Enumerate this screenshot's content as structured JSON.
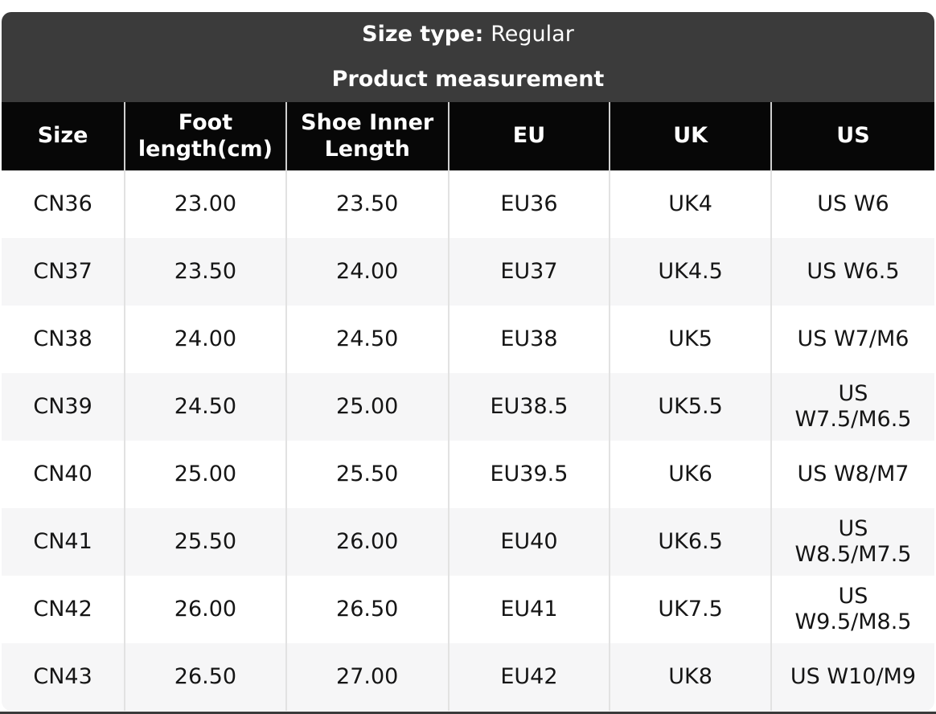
{
  "banner": {
    "size_type_label": "Size type:",
    "size_type_value": "Regular",
    "subtitle": "Product measurement"
  },
  "table": {
    "columns": [
      "Size",
      "Foot length(cm)",
      "Shoe Inner Length",
      "EU",
      "UK",
      "US"
    ],
    "rows": [
      [
        "CN36",
        "23.00",
        "23.50",
        "EU36",
        "UK4",
        "US W6"
      ],
      [
        "CN37",
        "23.50",
        "24.00",
        "EU37",
        "UK4.5",
        "US W6.5"
      ],
      [
        "CN38",
        "24.00",
        "24.50",
        "EU38",
        "UK5",
        "US W7/M6"
      ],
      [
        "CN39",
        "24.50",
        "25.00",
        "EU38.5",
        "UK5.5",
        "US W7.5/M6.5"
      ],
      [
        "CN40",
        "25.00",
        "25.50",
        "EU39.5",
        "UK6",
        "US W8/M7"
      ],
      [
        "CN41",
        "25.50",
        "26.00",
        "EU40",
        "UK6.5",
        "US W8.5/M7.5"
      ],
      [
        "CN42",
        "26.00",
        "26.50",
        "EU41",
        "UK7.5",
        "US W9.5/M8.5"
      ],
      [
        "CN43",
        "26.50",
        "27.00",
        "EU42",
        "UK8",
        "US W10/M9"
      ]
    ]
  },
  "colors": {
    "banner_bg": "#3b3b3b",
    "header_bg": "#070707",
    "row_alt_bg": "#f6f6f7",
    "border": "#e2e2e2",
    "header_divider": "#cfcfcf",
    "text": "#151515",
    "header_text": "#ffffff"
  }
}
